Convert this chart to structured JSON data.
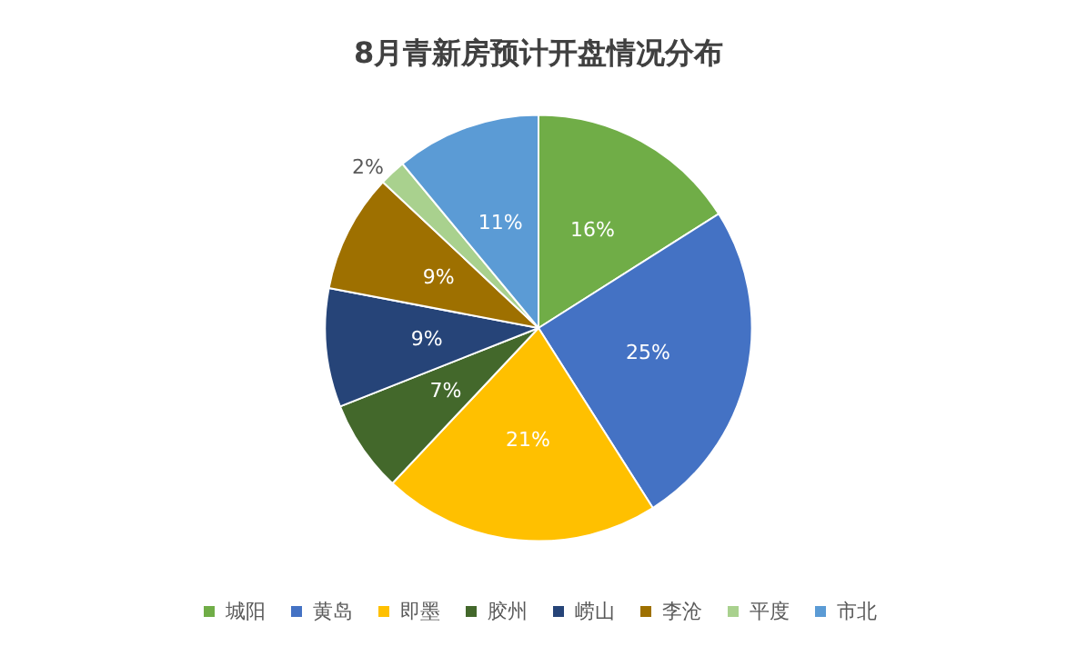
{
  "chart_data": {
    "type": "pie",
    "title": "8月青新房预计开盘情况分布",
    "categories": [
      "城阳",
      "黄岛",
      "即墨",
      "胶州",
      "崂山",
      "李沧",
      "平度",
      "市北"
    ],
    "values": [
      16,
      25,
      21,
      7,
      9,
      9,
      2,
      11
    ],
    "value_labels": [
      "16%",
      "25%",
      "21%",
      "7%",
      "9%",
      "9%",
      "2%",
      "11%"
    ],
    "colors": [
      "#70ad47",
      "#4472c4",
      "#ffc000",
      "#43682b",
      "#264478",
      "#9e7000",
      "#a9d18e",
      "#5b9bd5"
    ],
    "legend": "bottom"
  }
}
